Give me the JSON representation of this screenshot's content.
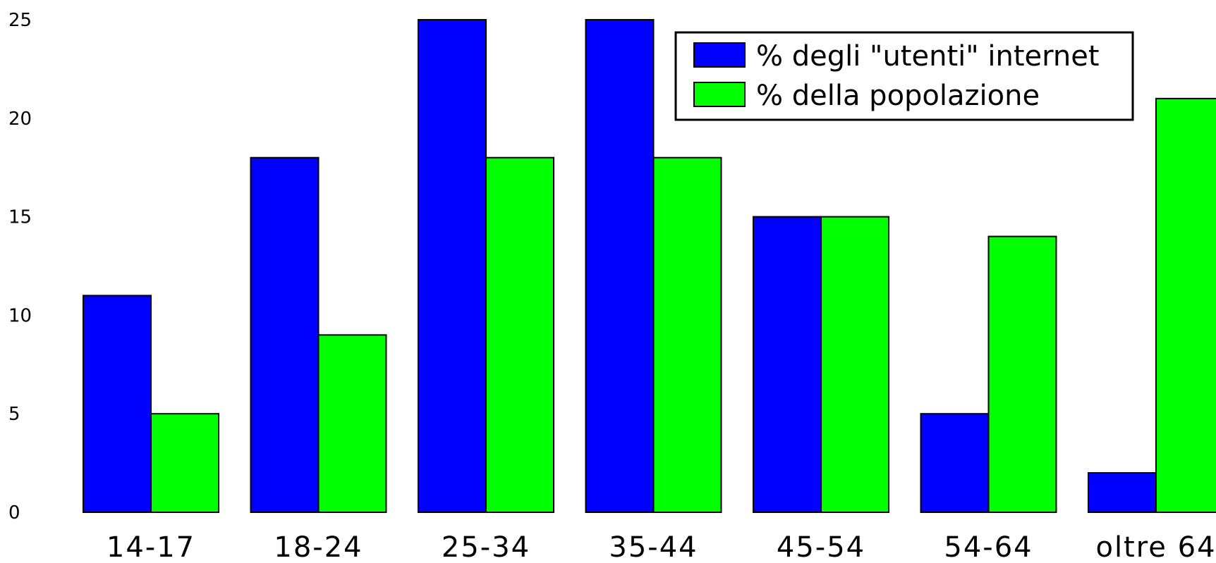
{
  "chart_data": {
    "type": "bar",
    "title": "",
    "xlabel": "",
    "ylabel": "",
    "categories": [
      "14-17",
      "18-24",
      "25-34",
      "35-44",
      "45-54",
      "54-64",
      "oltre 64"
    ],
    "series": [
      {
        "name": "% degli \"utenti\" internet",
        "color": "#0000ff",
        "values": [
          11,
          18,
          25,
          25,
          15,
          5,
          2
        ]
      },
      {
        "name": "% della popolazione",
        "color": "#00ff00",
        "values": [
          5,
          9,
          18,
          18,
          15,
          14,
          21
        ]
      }
    ],
    "ylim": [
      0,
      25
    ],
    "yticks": [
      0,
      5,
      10,
      15,
      20,
      25
    ],
    "grid": false,
    "legend_position": "top-right"
  }
}
